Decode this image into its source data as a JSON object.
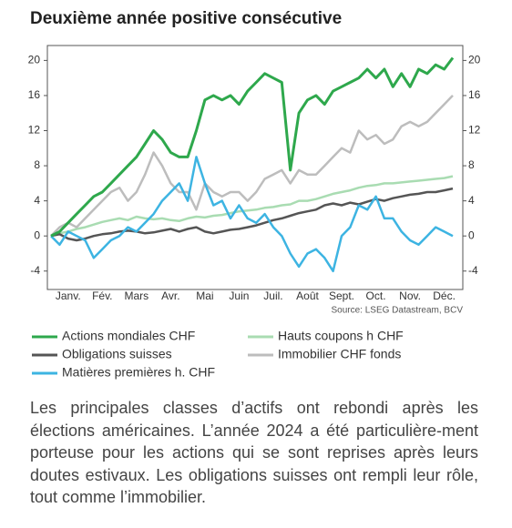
{
  "chart_data": {
    "type": "line",
    "title": "Deuxième année positive consécutive",
    "source": "Source: LSEG Datastream, BCV",
    "categories": [
      null,
      null,
      "Janv.",
      null,
      null,
      null,
      "Fév.",
      null,
      null,
      null,
      "Mars",
      null,
      null,
      null,
      "Avr.",
      null,
      null,
      null,
      "Mai",
      null,
      null,
      null,
      "Juin",
      null,
      null,
      null,
      "Juil.",
      null,
      null,
      null,
      "Août",
      null,
      null,
      null,
      "Sept.",
      null,
      null,
      null,
      "Oct.",
      null,
      null,
      null,
      "Nov.",
      null,
      null,
      null,
      "Déc.",
      null
    ],
    "series": [
      {
        "name": "Actions mondiales CHF",
        "color": "#2ea84c",
        "width": 3,
        "values": [
          0,
          0.5,
          1.5,
          2.5,
          3.5,
          4.5,
          5,
          6,
          7,
          8,
          9,
          10.5,
          12,
          11,
          9.5,
          9,
          9,
          12,
          15.5,
          16,
          15.5,
          16,
          15,
          16.5,
          17.5,
          18.5,
          18,
          17.5,
          7.5,
          14,
          15.5,
          16,
          15,
          16.5,
          17,
          17.5,
          18,
          19,
          18,
          19,
          17,
          18.5,
          17,
          19,
          18.5,
          19.5,
          19,
          20.3
        ]
      },
      {
        "name": "Hauts coupons h CHF",
        "color": "#a9dcb2",
        "width": 2.5,
        "values": [
          0,
          0.3,
          0.5,
          0.8,
          1,
          1.3,
          1.6,
          1.8,
          2,
          1.8,
          2.2,
          2,
          1.9,
          2,
          1.8,
          1.7,
          2,
          2.2,
          2.1,
          2.3,
          2.4,
          2.6,
          2.8,
          2.9,
          3,
          3.2,
          3.3,
          3.5,
          3.6,
          4,
          4,
          4.2,
          4.5,
          4.8,
          5,
          5.2,
          5.5,
          5.7,
          5.8,
          6,
          6,
          6.1,
          6.2,
          6.3,
          6.4,
          6.5,
          6.6,
          6.8
        ]
      },
      {
        "name": "Obligations suisses",
        "color": "#555555",
        "width": 2.5,
        "values": [
          0,
          0.2,
          -0.3,
          -0.5,
          -0.3,
          0,
          0.2,
          0.3,
          0.5,
          0.6,
          0.5,
          0.3,
          0.4,
          0.6,
          0.8,
          0.5,
          0.8,
          1,
          0.5,
          0.3,
          0.5,
          0.7,
          0.8,
          1,
          1.2,
          1.5,
          1.8,
          2,
          2.3,
          2.6,
          2.8,
          3,
          3.5,
          3.7,
          3.5,
          3.8,
          3.6,
          3.9,
          4.2,
          4,
          4.3,
          4.5,
          4.7,
          4.8,
          5,
          5,
          5.2,
          5.4
        ]
      },
      {
        "name": "Immobilier CHF fonds",
        "color": "#bdbdbd",
        "width": 2.5,
        "values": [
          0,
          1,
          1.5,
          1,
          2,
          3,
          4,
          5,
          5.5,
          4,
          5,
          7,
          9.5,
          8,
          6,
          5,
          5,
          3,
          6,
          5,
          4.5,
          5,
          5,
          4,
          5,
          6.5,
          7,
          7.5,
          6,
          7.5,
          7,
          7,
          8,
          9,
          10,
          9.5,
          12,
          11,
          11.5,
          10.5,
          11,
          12.5,
          13,
          12.5,
          13,
          14,
          15,
          16
        ]
      },
      {
        "name": "Matières premières h. CHF",
        "color": "#3db4e2",
        "width": 2.5,
        "values": [
          0,
          -1,
          0.5,
          0,
          -0.5,
          -2.5,
          -1.5,
          -0.5,
          0,
          1,
          0.5,
          1.5,
          2.5,
          4,
          5,
          6,
          4,
          9,
          6,
          3.5,
          4,
          2,
          3.5,
          2,
          1.5,
          2.5,
          1,
          0,
          -2,
          -3.5,
          -2,
          -1.5,
          -2.5,
          -4,
          0,
          1,
          3.5,
          3,
          4.5,
          2,
          2,
          0.5,
          -0.5,
          -1,
          0,
          1,
          0.5,
          0
        ]
      }
    ],
    "ylim": [
      -6.1,
      21.7
    ],
    "yticks": [
      -4,
      0,
      4,
      8,
      12,
      16,
      20
    ],
    "y2lim": [
      -6.1,
      21.7
    ],
    "y2ticks": [
      -4,
      0,
      4,
      8,
      12,
      16,
      20
    ],
    "grid": false
  },
  "text": "Les principales classes d’actifs ont rebondi après les élections américaines. L’année 2024 a été particulière-ment porteuse pour les actions qui se sont reprises après leurs doutes estivaux. Les obligations suisses ont rempli leur rôle, tout comme l’immobilier."
}
